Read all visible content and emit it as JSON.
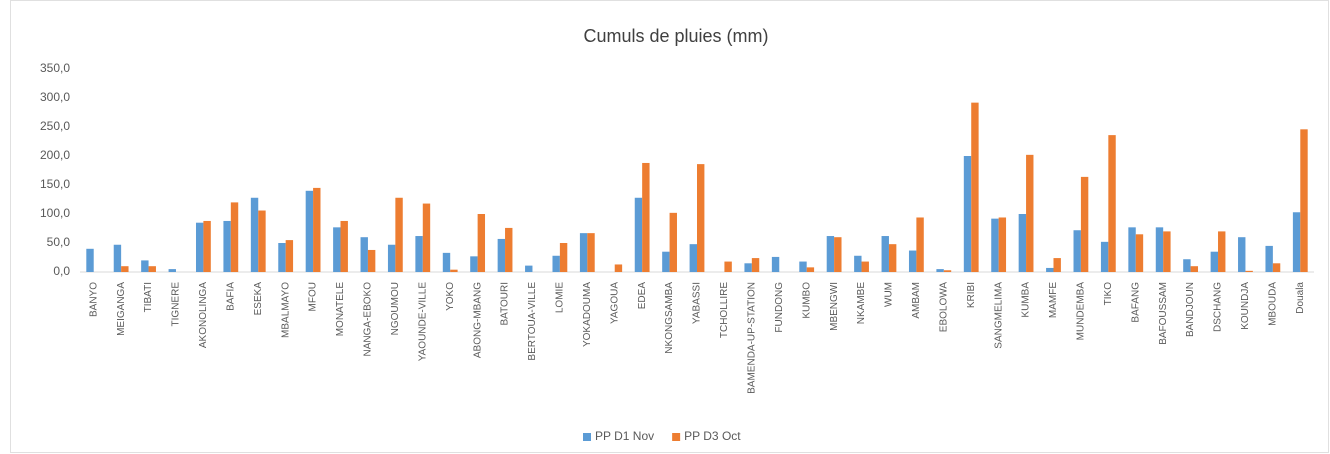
{
  "chart_data": {
    "type": "bar",
    "title": "Cumuls de pluies (mm)",
    "categories": [
      "BANYO",
      "MEIGANGA",
      "TIBATI",
      "TIGNERE",
      "AKONOLINGA",
      "BAFIA",
      "ESEKA",
      "MBALMAYO",
      "MFOU",
      "MONATELE",
      "NANGA-EBOKO",
      "NGOUMOU",
      "YAOUNDE-VILLE",
      "YOKO",
      "ABONG-MBANG",
      "BATOURI",
      "BERTOUA-VILLE",
      "LOMIE",
      "YOKADOUMA",
      "YAGOUA",
      "EDEA",
      "NKONGSAMBA",
      "YABASSI",
      "TCHOLLIRE",
      "BAMENDA-UP-STATION",
      "FUNDONG",
      "KUMBO",
      "MBENGWI",
      "NKAMBE",
      "WUM",
      "AMBAM",
      "EBOLOWA",
      "KRIBI",
      "SANGMELIMA",
      "KUMBA",
      "MAMFE",
      "MUNDEMBA",
      "TIKO",
      "BAFANG",
      "BAFOUSSAM",
      "BANDJOUN",
      "DSCHANG",
      "KOUNDJA",
      "MBOUDA",
      "Douala"
    ],
    "series": [
      {
        "name": "PP D1 Nov",
        "color": "#5b9bd5",
        "values": [
          40,
          47,
          20,
          5,
          85,
          88,
          128,
          50,
          140,
          77,
          60,
          47,
          62,
          33,
          27,
          57,
          11,
          28,
          67,
          0,
          128,
          35,
          48,
          0,
          15,
          26,
          18,
          62,
          28,
          62,
          37,
          5,
          200,
          92,
          100,
          7,
          72,
          52,
          77,
          77,
          22,
          35,
          60,
          45,
          103
        ]
      },
      {
        "name": "PP D3 Oct",
        "color": "#ed7d31",
        "values": [
          0,
          10,
          10,
          0,
          88,
          120,
          106,
          55,
          145,
          88,
          38,
          128,
          118,
          4,
          100,
          76,
          0,
          50,
          67,
          13,
          188,
          102,
          186,
          18,
          24,
          0,
          8,
          60,
          18,
          48,
          94,
          3,
          292,
          94,
          202,
          24,
          164,
          236,
          65,
          70,
          10,
          70,
          2,
          15,
          246
        ]
      }
    ],
    "ylim": [
      0,
      350
    ],
    "yticks": [
      {
        "value": 0,
        "label": "0,0"
      },
      {
        "value": 50,
        "label": "50,0"
      },
      {
        "value": 100,
        "label": "100,0"
      },
      {
        "value": 150,
        "label": "150,0"
      },
      {
        "value": 200,
        "label": "200,0"
      },
      {
        "value": 250,
        "label": "250,0"
      },
      {
        "value": 300,
        "label": "300,0"
      },
      {
        "value": 350,
        "label": "350,0"
      }
    ],
    "grid": false,
    "legend": "bottom"
  }
}
